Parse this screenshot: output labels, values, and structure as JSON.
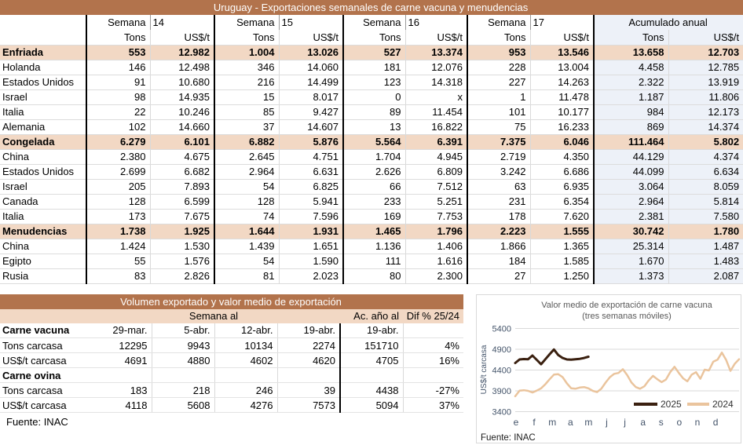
{
  "colors": {
    "banner": "#b2734c",
    "section_bg": "#f2d8c4",
    "accum_bg": "#edf1f8",
    "line_2025": "#3a2010",
    "line_2024": "#eac49d",
    "axis_text": "#44546a",
    "chart_title": "#595959",
    "grid": "#d9d9d9"
  },
  "table1": {
    "title": "Uruguay - Exportaciones semanales de carne vacuna y menudencias",
    "week_label": "Semana",
    "week_numbers": [
      "14",
      "15",
      "16",
      "17"
    ],
    "accum_label": "Acumulado anual",
    "col_tons": "Tons",
    "col_usd": "US$/t",
    "rows": [
      {
        "label": "Enfriada",
        "section": true,
        "values": [
          "553",
          "12.982",
          "1.004",
          "13.026",
          "527",
          "13.374",
          "953",
          "13.546",
          "13.658",
          "12.703"
        ]
      },
      {
        "label": "Holanda",
        "section": false,
        "values": [
          "146",
          "12.498",
          "346",
          "14.060",
          "181",
          "12.076",
          "228",
          "13.004",
          "4.458",
          "12.785"
        ]
      },
      {
        "label": "Estados Unidos",
        "section": false,
        "values": [
          "91",
          "10.680",
          "216",
          "14.499",
          "123",
          "14.318",
          "227",
          "14.263",
          "2.322",
          "13.919"
        ]
      },
      {
        "label": "Israel",
        "section": false,
        "values": [
          "98",
          "14.935",
          "15",
          "8.017",
          "0",
          "x",
          "1",
          "11.478",
          "1.187",
          "11.806"
        ]
      },
      {
        "label": "Italia",
        "section": false,
        "values": [
          "22",
          "10.246",
          "85",
          "9.427",
          "89",
          "11.454",
          "101",
          "10.177",
          "984",
          "12.173"
        ]
      },
      {
        "label": "Alemania",
        "section": false,
        "values": [
          "102",
          "14.660",
          "37",
          "14.607",
          "13",
          "16.822",
          "75",
          "16.233",
          "869",
          "14.374"
        ]
      },
      {
        "label": "Congelada",
        "section": true,
        "values": [
          "6.279",
          "6.101",
          "6.882",
          "5.876",
          "5.564",
          "6.391",
          "7.375",
          "6.046",
          "111.464",
          "5.802"
        ]
      },
      {
        "label": "China",
        "section": false,
        "values": [
          "2.380",
          "4.675",
          "2.645",
          "4.751",
          "1.704",
          "4.945",
          "2.719",
          "4.350",
          "44.129",
          "4.374"
        ]
      },
      {
        "label": "Estados Unidos",
        "section": false,
        "values": [
          "2.699",
          "6.682",
          "2.964",
          "6.631",
          "2.626",
          "6.809",
          "3.242",
          "6.686",
          "44.099",
          "6.634"
        ]
      },
      {
        "label": "Israel",
        "section": false,
        "values": [
          "205",
          "7.893",
          "54",
          "6.825",
          "66",
          "7.512",
          "63",
          "6.935",
          "3.064",
          "8.059"
        ]
      },
      {
        "label": "Canada",
        "section": false,
        "values": [
          "128",
          "6.599",
          "128",
          "5.941",
          "233",
          "5.251",
          "231",
          "6.354",
          "2.964",
          "5.814"
        ]
      },
      {
        "label": "Italia",
        "section": false,
        "values": [
          "173",
          "7.675",
          "74",
          "7.596",
          "169",
          "7.753",
          "178",
          "7.620",
          "2.381",
          "7.580"
        ]
      },
      {
        "label": "Menudencias",
        "section": true,
        "values": [
          "1.738",
          "1.925",
          "1.644",
          "1.931",
          "1.465",
          "1.796",
          "2.223",
          "1.555",
          "30.742",
          "1.780"
        ]
      },
      {
        "label": "China",
        "section": false,
        "values": [
          "1.424",
          "1.530",
          "1.439",
          "1.651",
          "1.136",
          "1.406",
          "1.866",
          "1.365",
          "25.314",
          "1.487"
        ]
      },
      {
        "label": "Egipto",
        "section": false,
        "values": [
          "55",
          "1.576",
          "54",
          "1.590",
          "111",
          "1.616",
          "184",
          "1.585",
          "1.670",
          "1.483"
        ]
      },
      {
        "label": "Rusia",
        "section": false,
        "values": [
          "83",
          "2.826",
          "81",
          "2.023",
          "80",
          "2.300",
          "27",
          "1.250",
          "1.373",
          "2.087"
        ]
      }
    ]
  },
  "table2": {
    "title": "Volumen exportado y valor medio de exportación",
    "group_header": "Semana al",
    "acc_header": "Ac. año al",
    "dif_header": "Dif % 25/24",
    "rows": [
      {
        "label": "Carne vacuna",
        "section": true,
        "values": [
          "29-mar.",
          "5-abr.",
          "12-abr.",
          "19-abr.",
          "19-abr.",
          ""
        ]
      },
      {
        "label": "Tons carcasa",
        "section": false,
        "values": [
          "12295",
          "9943",
          "10134",
          "2274",
          "151710",
          "4%"
        ]
      },
      {
        "label": "US$/t carcasa",
        "section": false,
        "values": [
          "4691",
          "4880",
          "4602",
          "4620",
          "4705",
          "16%"
        ]
      },
      {
        "label": "Carne ovina",
        "section": true,
        "values": [
          "",
          "",
          "",
          "",
          "",
          ""
        ]
      },
      {
        "label": "Tons carcasa",
        "section": false,
        "values": [
          "183",
          "218",
          "246",
          "39",
          "4438",
          "-27%"
        ]
      },
      {
        "label": "US$/t carcasa",
        "section": false,
        "values": [
          "4118",
          "5608",
          "4276",
          "7573",
          "5094",
          "37%"
        ]
      }
    ],
    "source": "Fuente: INAC"
  },
  "chart_data": {
    "type": "line",
    "title": "Valor medio de exportación de carne vacuna",
    "subtitle": "(tres semanas móviles)",
    "ylabel": "US$/t carcasa",
    "ylim": [
      3400,
      5400
    ],
    "yticks": [
      5400,
      4900,
      4400,
      3900,
      3400
    ],
    "x_categories": [
      "e",
      "f",
      "m",
      "a",
      "m",
      "j",
      "j",
      "a",
      "s",
      "o",
      "n",
      "d"
    ],
    "weeks_per_year": 52,
    "grid": true,
    "legend_position": "inside-bottom-right",
    "source": "Fuente: INAC",
    "series": [
      {
        "name": "2024",
        "color_key": "line_2024",
        "values": [
          3770,
          3905,
          3915,
          3900,
          3860,
          3905,
          3960,
          4060,
          4180,
          4290,
          4300,
          4230,
          4080,
          3960,
          3950,
          3980,
          3990,
          3960,
          3900,
          3870,
          3950,
          4100,
          4230,
          4310,
          4330,
          4420,
          4280,
          4100,
          3990,
          3950,
          4010,
          4150,
          4260,
          4180,
          4110,
          4170,
          4350,
          4480,
          4330,
          4200,
          4130,
          4290,
          4350,
          4190,
          4410,
          4390,
          4600,
          4650,
          4820,
          4640,
          4380,
          4550,
          4660
        ]
      },
      {
        "name": "2025",
        "color_key": "line_2025",
        "values": [
          4570,
          4655,
          4665,
          4660,
          4750,
          4645,
          4540,
          4660,
          4780,
          4895,
          4760,
          4690,
          4655,
          4650,
          4660,
          4670,
          4690,
          4720
        ]
      }
    ]
  }
}
